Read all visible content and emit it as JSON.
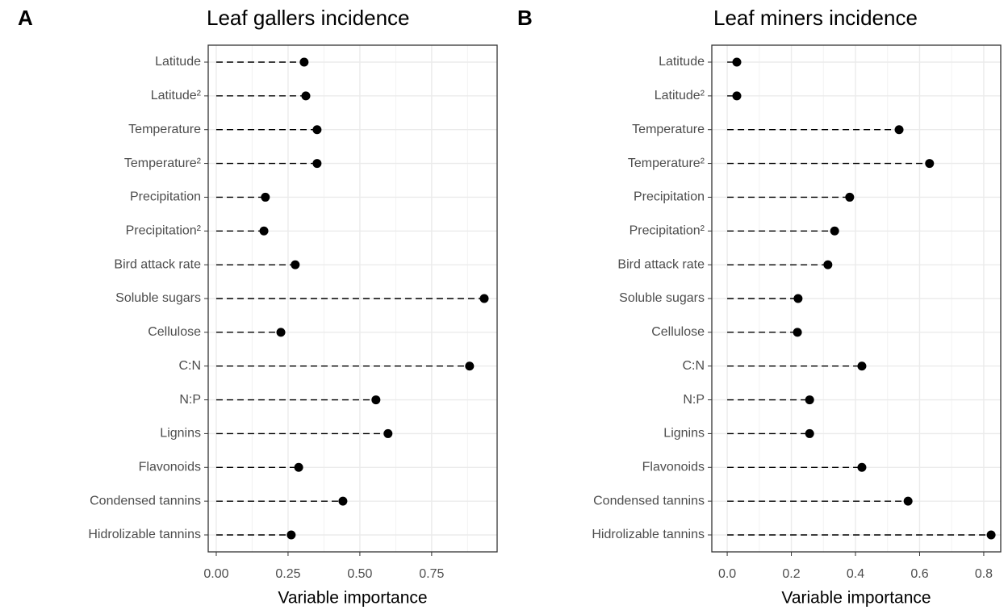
{
  "chart_data": [
    {
      "type": "lollipop",
      "panel": "A",
      "title": "Leaf gallers incidence",
      "xlabel": "Variable importance",
      "categories": [
        "Latitude",
        "Latitude²",
        "Temperature",
        "Temperature²",
        "Precipitation",
        "Precipitation²",
        "Bird attack rate",
        "Soluble sugars",
        "Cellulose",
        "C:N",
        "N:P",
        "Lignins",
        "Flavonoids",
        "Condensed tannins",
        "Hidrolizable tannins"
      ],
      "values": [
        0.306,
        0.312,
        0.351,
        0.351,
        0.171,
        0.166,
        0.275,
        0.933,
        0.225,
        0.882,
        0.556,
        0.598,
        0.287,
        0.441,
        0.261
      ],
      "color": "#000000",
      "xlim": [
        -0.028,
        0.978
      ],
      "xticks": [
        {
          "value": 0,
          "label": "0.00"
        },
        0.25,
        {
          "value": 0.5,
          "label": "0.50"
        },
        0.75
      ],
      "grid": true
    },
    {
      "type": "lollipop",
      "panel": "B",
      "title": "Leaf miners incidence",
      "xlabel": "Variable importance",
      "categories": [
        "Latitude",
        "Latitude²",
        "Temperature",
        "Temperature²",
        "Precipitation",
        "Precipitation²",
        "Bird attack rate",
        "Soluble sugars",
        "Cellulose",
        "C:N",
        "N:P",
        "Lignins",
        "Flavonoids",
        "Condensed tannins",
        "Hidrolizable tannins"
      ],
      "values": [
        0.03,
        0.03,
        0.536,
        0.631,
        0.382,
        0.335,
        0.314,
        0.221,
        0.219,
        0.42,
        0.257,
        0.257,
        0.42,
        0.564,
        0.823
      ],
      "color": "#000000",
      "xlim": [
        -0.048,
        0.853
      ],
      "xticks": [
        {
          "value": 0,
          "label": "0.0"
        },
        0.2,
        0.4,
        0.6,
        0.8
      ],
      "grid": true
    }
  ]
}
